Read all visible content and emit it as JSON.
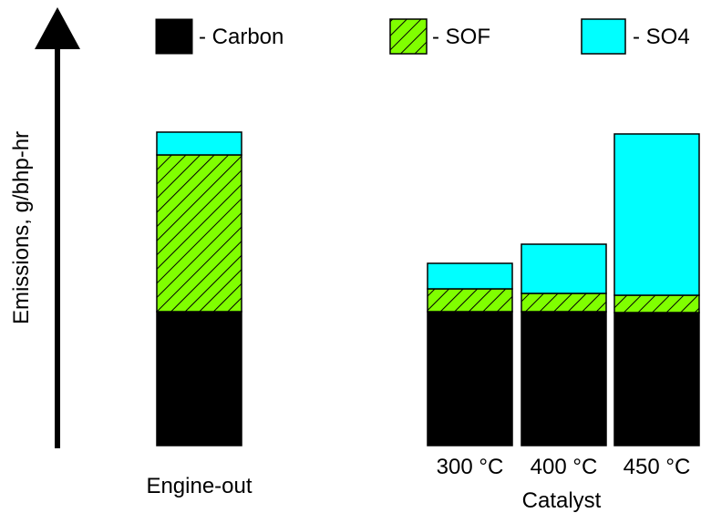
{
  "chart_data": {
    "type": "bar",
    "stacked": true,
    "ylabel": "Emissions, g/bhp-hr",
    "y_axis_numeric": false,
    "categories": [
      "Engine-out",
      "300 °C",
      "400 °C",
      "450 °C"
    ],
    "group_label": "Catalyst",
    "legend_position": "top",
    "series": [
      {
        "name": "- Carbon",
        "key": "carbon",
        "values": [
          147,
          147,
          147,
          146
        ],
        "color": "#000000",
        "pattern": "solid"
      },
      {
        "name": "- SOF",
        "key": "sof",
        "values": [
          172,
          25,
          20,
          19
        ],
        "color": "#80ff00",
        "pattern": "hatch"
      },
      {
        "name": "- SO4",
        "key": "so4",
        "values": [
          25,
          28,
          54,
          177
        ],
        "color": "#00ffff",
        "pattern": "solid"
      }
    ]
  }
}
